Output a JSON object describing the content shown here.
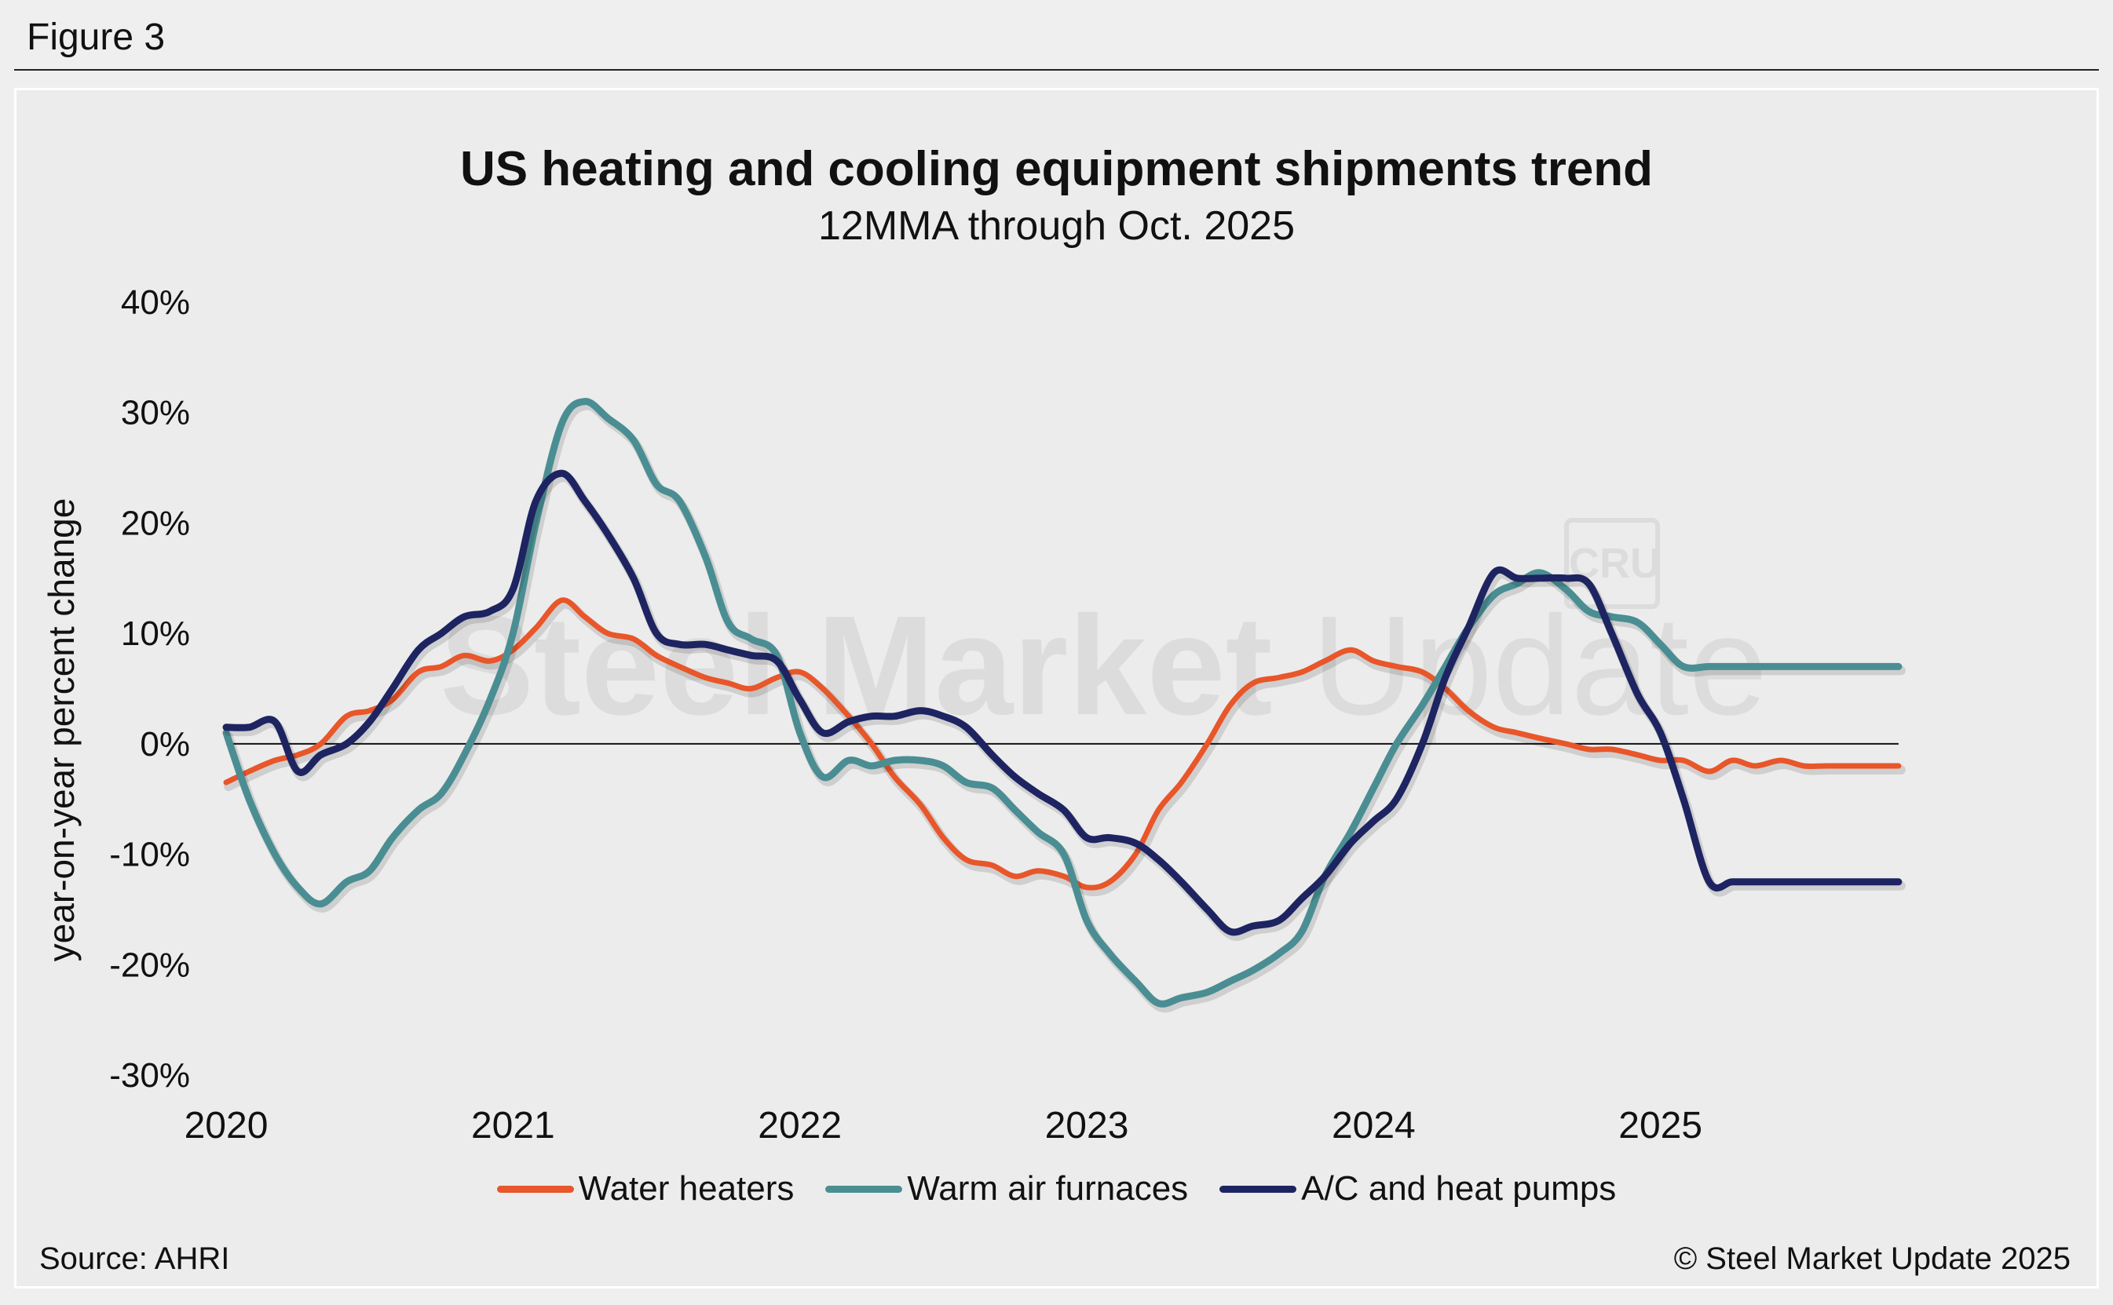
{
  "figure_label": "Figure 3",
  "watermark": {
    "text_bold": "Steel Market",
    "text_light": " Update",
    "badge": "CRU"
  },
  "footer": {
    "source": "Source: AHRI",
    "copyright": "© Steel Market Update 2025"
  },
  "chart_data": {
    "type": "line",
    "title": "US heating and cooling equipment shipments trend",
    "subtitle": "12MMA through Oct. 2025",
    "xlabel": "",
    "ylabel": "year-on-year percent change",
    "x_ticks": [
      "2020",
      "2021",
      "2022",
      "2023",
      "2024",
      "2025"
    ],
    "y_ticks": [
      "40%",
      "30%",
      "20%",
      "10%",
      "0%",
      "-10%",
      "-20%",
      "-30%"
    ],
    "ylim": [
      -30,
      40
    ],
    "xlim": [
      2020.0,
      2025.83
    ],
    "grid": false,
    "zero_line": true,
    "legend_position": "bottom",
    "colors": {
      "water_heaters": "#e8562a",
      "warm_air_furnaces": "#4a8e93",
      "ac_heat_pumps": "#1d2461"
    },
    "x": [
      2020.0,
      2020.08,
      2020.17,
      2020.25,
      2020.33,
      2020.42,
      2020.5,
      2020.58,
      2020.67,
      2020.75,
      2020.83,
      2020.92,
      2021.0,
      2021.08,
      2021.17,
      2021.25,
      2021.33,
      2021.42,
      2021.5,
      2021.58,
      2021.67,
      2021.75,
      2021.83,
      2021.92,
      2022.0,
      2022.08,
      2022.17,
      2022.25,
      2022.33,
      2022.42,
      2022.5,
      2022.58,
      2022.67,
      2022.75,
      2022.83,
      2022.92,
      2023.0,
      2023.08,
      2023.17,
      2023.25,
      2023.33,
      2023.42,
      2023.5,
      2023.58,
      2023.67,
      2023.75,
      2023.83,
      2023.92,
      2024.0,
      2024.08,
      2024.17,
      2024.25,
      2024.33,
      2024.42,
      2024.5,
      2024.58,
      2024.67,
      2024.75,
      2024.83,
      2024.92,
      2025.0,
      2025.08,
      2025.17,
      2025.25,
      2025.33,
      2025.42,
      2025.5,
      2025.58,
      2025.67,
      2025.75,
      2025.83
    ],
    "series": [
      {
        "name": "Water heaters",
        "values": [
          -3.5,
          -2.5,
          -1.5,
          -1.0,
          0.0,
          2.5,
          3.0,
          4.0,
          6.5,
          7.0,
          8.0,
          7.5,
          8.5,
          10.5,
          13.0,
          11.5,
          10.0,
          9.5,
          8.0,
          7.0,
          6.0,
          5.5,
          5.0,
          6.0,
          6.5,
          5.0,
          2.5,
          0.0,
          -3.0,
          -5.5,
          -8.5,
          -10.5,
          -11.0,
          -12.0,
          -11.5,
          -12.0,
          -13.0,
          -12.5,
          -10.0,
          -6.0,
          -3.5,
          0.0,
          3.5,
          5.5,
          6.0,
          6.5,
          7.5,
          8.5,
          7.5,
          7.0,
          6.5,
          5.0,
          3.0,
          1.5,
          1.0,
          0.5,
          0.0,
          -0.5,
          -0.5,
          -1.0,
          -1.5,
          -1.5,
          -2.5,
          -1.5,
          -2.0,
          -1.5,
          -2.0,
          -2.0,
          -2.0,
          -2.0,
          -2.0
        ]
      },
      {
        "name": "Warm air furnaces",
        "values": [
          1.0,
          -5.0,
          -10.0,
          -13.0,
          -14.5,
          -12.5,
          -11.5,
          -8.5,
          -6.0,
          -4.5,
          -1.0,
          4.0,
          10.0,
          20.0,
          29.0,
          31.0,
          29.5,
          27.5,
          23.5,
          22.0,
          17.0,
          11.0,
          9.5,
          8.0,
          1.0,
          -3.0,
          -1.5,
          -2.0,
          -1.5,
          -1.5,
          -2.0,
          -3.5,
          -4.0,
          -6.0,
          -8.0,
          -10.0,
          -16.0,
          -19.0,
          -21.5,
          -23.5,
          -23.0,
          -22.5,
          -21.5,
          -20.5,
          -19.0,
          -17.0,
          -12.0,
          -8.0,
          -4.0,
          0.0,
          3.5,
          7.0,
          10.5,
          13.5,
          14.5,
          15.5,
          14.0,
          12.0,
          11.5,
          11.0,
          9.0,
          7.0,
          7.0,
          7.0,
          7.0,
          7.0,
          7.0,
          7.0,
          7.0,
          7.0,
          7.0
        ]
      },
      {
        "name": "A/C and heat pumps",
        "values": [
          1.5,
          1.5,
          2.0,
          -2.5,
          -1.0,
          0.0,
          2.0,
          5.0,
          8.5,
          10.0,
          11.5,
          12.0,
          14.0,
          22.0,
          24.5,
          22.0,
          19.0,
          15.0,
          10.0,
          9.0,
          9.0,
          8.5,
          8.0,
          7.5,
          4.0,
          1.0,
          2.0,
          2.5,
          2.5,
          3.0,
          2.5,
          1.5,
          -1.0,
          -3.0,
          -4.5,
          -6.0,
          -8.5,
          -8.5,
          -9.0,
          -10.5,
          -12.5,
          -15.0,
          -17.0,
          -16.5,
          -16.0,
          -14.0,
          -12.0,
          -9.0,
          -7.0,
          -5.0,
          0.0,
          6.0,
          10.5,
          15.5,
          15.0,
          15.0,
          15.0,
          14.5,
          10.0,
          4.5,
          1.0,
          -5.0,
          -12.5,
          -12.5,
          -12.5,
          -12.5,
          -12.5,
          -12.5,
          -12.5,
          -12.5,
          -12.5
        ]
      }
    ]
  }
}
